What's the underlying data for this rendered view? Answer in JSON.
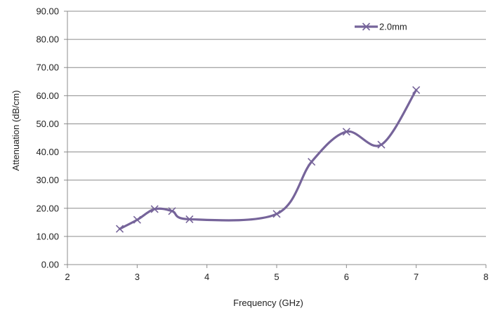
{
  "chart_data": {
    "type": "line",
    "title": "",
    "xlabel": "Frequency (GHz)",
    "ylabel": "Attenuation (dB/cm)",
    "xlim": [
      2,
      8
    ],
    "ylim": [
      0,
      90
    ],
    "x_ticks": [
      2,
      3,
      4,
      5,
      6,
      7,
      8
    ],
    "x_tick_labels": [
      "2",
      "3",
      "4",
      "5",
      "6",
      "7",
      "8"
    ],
    "y_ticks": [
      0,
      10,
      20,
      30,
      40,
      50,
      60,
      70,
      80,
      90
    ],
    "y_tick_labels": [
      "0.00",
      "10.00",
      "20.00",
      "30.00",
      "40.00",
      "50.00",
      "60.00",
      "70.00",
      "80.00",
      "90.00"
    ],
    "grid": "horizontal",
    "legend_position": "top-right",
    "series": [
      {
        "name": "2.0mm",
        "color": "#76649a",
        "marker": "x",
        "smooth": true,
        "x": [
          2.75,
          3.0,
          3.25,
          3.5,
          3.75,
          5.0,
          5.5,
          6.0,
          6.5,
          7.0
        ],
        "y": [
          12.7,
          15.9,
          19.7,
          19.0,
          16.1,
          18.0,
          36.5,
          47.2,
          42.6,
          62.0
        ]
      }
    ]
  }
}
